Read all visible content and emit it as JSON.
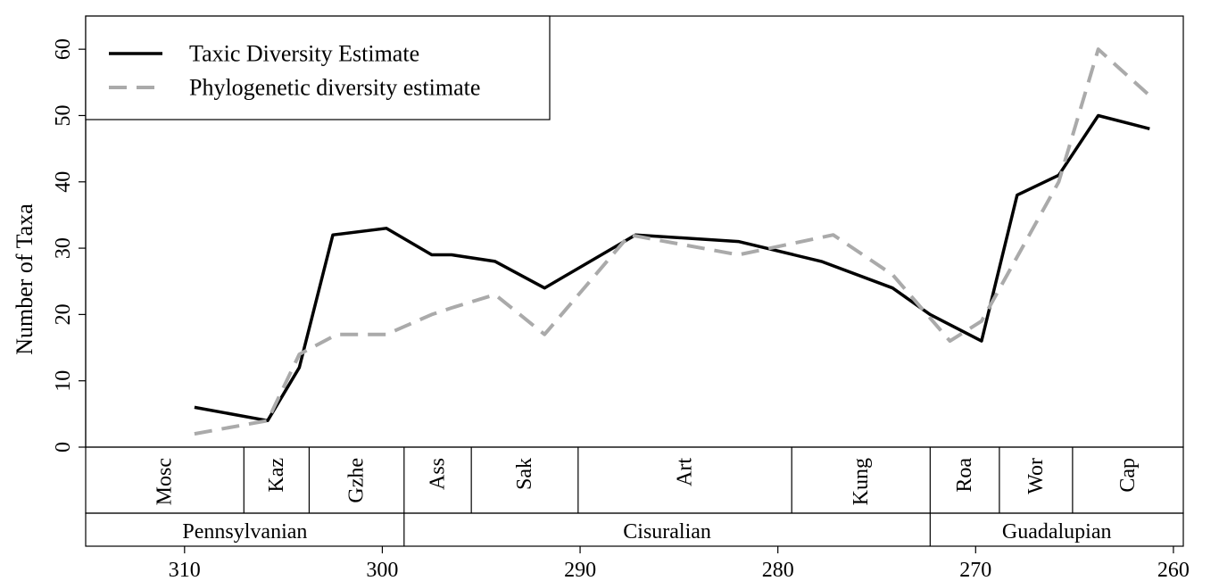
{
  "chart_data": {
    "type": "line",
    "title": "",
    "xlabel": "",
    "ylabel": "Number of Taxa",
    "xlim": [
      315,
      259.5
    ],
    "ylim": [
      0,
      65
    ],
    "x_reversed": true,
    "x_ticks": [
      310,
      300,
      290,
      280,
      270,
      260
    ],
    "y_ticks": [
      0,
      10,
      20,
      30,
      40,
      50,
      60
    ],
    "legend": {
      "placement": "top-left"
    },
    "series": [
      {
        "name": "Taxic Diversity Estimate",
        "color": "#000000",
        "style": "solid",
        "points": [
          [
            309.5,
            6
          ],
          [
            305.8,
            4
          ],
          [
            304.2,
            12
          ],
          [
            302.5,
            32
          ],
          [
            299.8,
            33
          ],
          [
            297.5,
            29
          ],
          [
            296.5,
            29
          ],
          [
            294.3,
            28
          ],
          [
            291.8,
            24
          ],
          [
            287.2,
            32
          ],
          [
            282.0,
            31
          ],
          [
            277.8,
            28
          ],
          [
            274.2,
            24
          ],
          [
            272.3,
            20
          ],
          [
            269.7,
            16
          ],
          [
            267.9,
            38
          ],
          [
            265.8,
            41
          ],
          [
            263.8,
            50
          ],
          [
            261.2,
            48
          ]
        ]
      },
      {
        "name": "Phylogenetic diversity estimate",
        "color": "#aaaaaa",
        "style": "dashed",
        "points": [
          [
            309.5,
            2
          ],
          [
            305.8,
            4
          ],
          [
            304.2,
            14
          ],
          [
            302.3,
            17
          ],
          [
            299.8,
            17
          ],
          [
            297.5,
            20
          ],
          [
            296.5,
            21
          ],
          [
            294.3,
            23
          ],
          [
            291.8,
            17
          ],
          [
            287.5,
            32
          ],
          [
            282.0,
            29
          ],
          [
            277.2,
            32
          ],
          [
            274.2,
            26
          ],
          [
            271.3,
            16
          ],
          [
            269.7,
            19
          ],
          [
            265.8,
            40
          ],
          [
            263.8,
            60
          ],
          [
            261.2,
            53
          ]
        ]
      }
    ],
    "stages": [
      {
        "label": "Mosc",
        "start": 315,
        "end": 307.0
      },
      {
        "label": "Kaz",
        "start": 307.0,
        "end": 303.7
      },
      {
        "label": "Gzhe",
        "start": 303.7,
        "end": 298.9
      },
      {
        "label": "Ass",
        "start": 298.9,
        "end": 295.5
      },
      {
        "label": "Sak",
        "start": 295.5,
        "end": 290.1
      },
      {
        "label": "Art",
        "start": 290.1,
        "end": 279.3
      },
      {
        "label": "Kung",
        "start": 279.3,
        "end": 272.3
      },
      {
        "label": "Roa",
        "start": 272.3,
        "end": 268.8
      },
      {
        "label": "Wor",
        "start": 268.8,
        "end": 265.1
      },
      {
        "label": "Cap",
        "start": 265.1,
        "end": 259.5
      }
    ],
    "epochs": [
      {
        "label": "Pennsylvanian",
        "start": 315,
        "end": 298.9
      },
      {
        "label": "Cisuralian",
        "start": 298.9,
        "end": 272.3
      },
      {
        "label": "Guadalupian",
        "start": 272.3,
        "end": 259.5
      }
    ]
  }
}
